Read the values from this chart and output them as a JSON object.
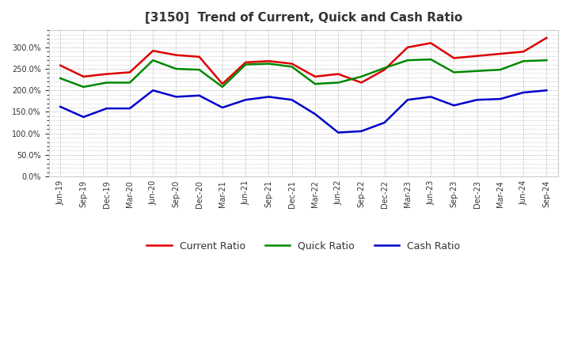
{
  "title": "[3150]  Trend of Current, Quick and Cash Ratio",
  "x_labels": [
    "Jun-19",
    "Sep-19",
    "Dec-19",
    "Mar-20",
    "Jun-20",
    "Sep-20",
    "Dec-20",
    "Mar-21",
    "Jun-21",
    "Sep-21",
    "Dec-21",
    "Mar-22",
    "Jun-22",
    "Sep-22",
    "Dec-22",
    "Mar-23",
    "Jun-23",
    "Sep-23",
    "Dec-23",
    "Mar-24",
    "Jun-24",
    "Sep-24"
  ],
  "current_ratio": [
    258,
    232,
    238,
    242,
    292,
    282,
    278,
    215,
    265,
    268,
    262,
    232,
    238,
    218,
    248,
    300,
    310,
    275,
    280,
    285,
    290,
    322
  ],
  "quick_ratio": [
    228,
    208,
    218,
    218,
    270,
    250,
    248,
    208,
    260,
    262,
    255,
    215,
    218,
    232,
    252,
    270,
    272,
    242,
    245,
    248,
    268,
    270
  ],
  "cash_ratio": [
    162,
    138,
    158,
    158,
    200,
    185,
    188,
    160,
    178,
    185,
    178,
    145,
    102,
    105,
    125,
    178,
    185,
    165,
    178,
    180,
    195,
    200
  ],
  "ylim": [
    0,
    340
  ],
  "yticks": [
    0,
    50,
    100,
    150,
    200,
    250,
    300
  ],
  "current_color": "#dd0000",
  "quick_color": "#008800",
  "cash_color": "#0000cc",
  "bg_color": "#ffffff",
  "plot_bg_color": "#ffffff",
  "grid_color": "#999999",
  "title_color": "#333333",
  "legend_labels": [
    "Current Ratio",
    "Quick Ratio",
    "Cash Ratio"
  ]
}
